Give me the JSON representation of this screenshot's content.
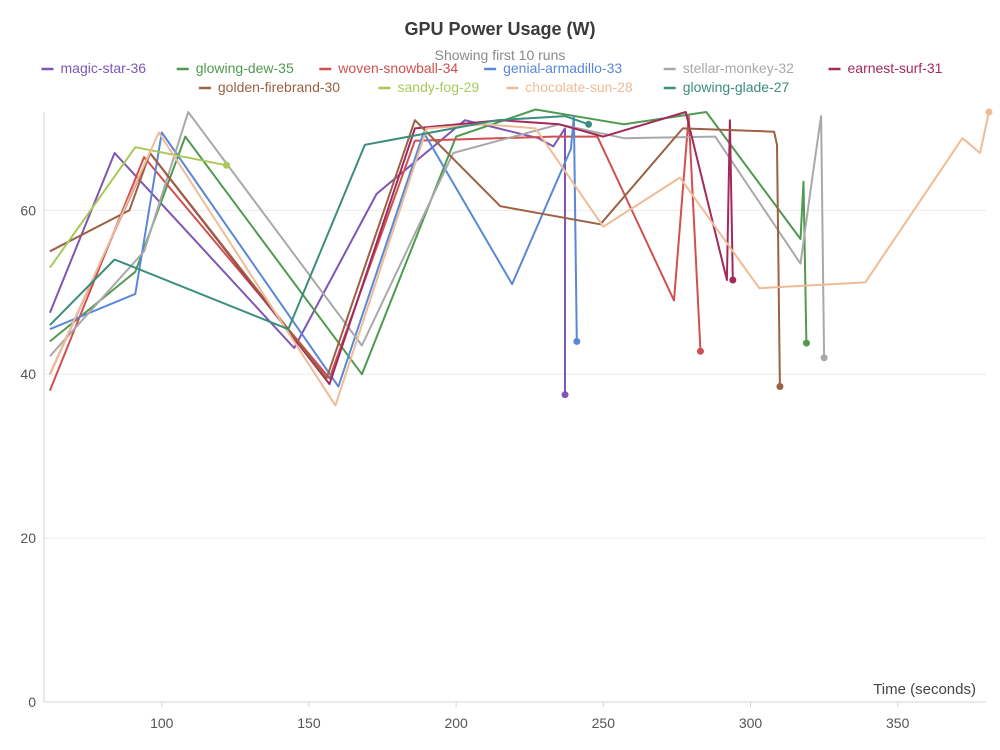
{
  "chart_data": {
    "type": "line",
    "title": "GPU Power Usage (W)",
    "subtitle": "Showing first 10 runs",
    "xlabel": "Time (seconds)",
    "ylabel": "",
    "xlim": [
      60,
      380
    ],
    "ylim": [
      0,
      72
    ],
    "x_ticks": [
      100,
      150,
      200,
      250,
      300,
      350
    ],
    "y_ticks": [
      0,
      20,
      40,
      60
    ],
    "grid": true,
    "legend_position": "top",
    "series": [
      {
        "name": "magic-star-36",
        "color": "#7e56b5",
        "points": [
          [
            62,
            47.5
          ],
          [
            84,
            67
          ],
          [
            145,
            43.2
          ],
          [
            173,
            62
          ],
          [
            203,
            71
          ],
          [
            228,
            68.8
          ],
          [
            233,
            67.8
          ],
          [
            237,
            70
          ],
          [
            237,
            37.5
          ]
        ]
      },
      {
        "name": "glowing-dew-35",
        "color": "#4f9a4f",
        "points": [
          [
            62,
            44
          ],
          [
            91,
            52.5
          ],
          [
            108,
            69
          ],
          [
            168,
            40
          ],
          [
            200,
            69
          ],
          [
            227,
            72.3
          ],
          [
            257,
            70.5
          ],
          [
            285,
            72
          ],
          [
            317,
            56.5
          ],
          [
            318,
            63.5
          ],
          [
            319,
            43.8
          ]
        ]
      },
      {
        "name": "woven-snowball-34",
        "color": "#d0504f",
        "points": [
          [
            62,
            38
          ],
          [
            94,
            66.5
          ],
          [
            157,
            39.5
          ],
          [
            186,
            68.5
          ],
          [
            233,
            69
          ],
          [
            248,
            69
          ],
          [
            274,
            49
          ],
          [
            279,
            71.5
          ],
          [
            283,
            42.8
          ]
        ]
      },
      {
        "name": "genial-armadillo-33",
        "color": "#5a87d6",
        "points": [
          [
            62,
            45.5
          ],
          [
            91,
            49.8
          ],
          [
            100,
            69.5
          ],
          [
            160,
            38.5
          ],
          [
            189,
            69.5
          ],
          [
            219,
            51
          ],
          [
            239,
            67.5
          ],
          [
            240,
            71.5
          ],
          [
            241,
            44
          ]
        ]
      },
      {
        "name": "stellar-monkey-32",
        "color": "#a9a9a9",
        "points": [
          [
            62,
            42.2
          ],
          [
            94,
            55
          ],
          [
            109,
            72
          ],
          [
            168,
            43.5
          ],
          [
            199,
            67
          ],
          [
            235,
            70.5
          ],
          [
            257,
            68.8
          ],
          [
            288,
            69
          ],
          [
            317,
            53.5
          ],
          [
            321,
            64
          ],
          [
            324,
            71.5
          ],
          [
            325,
            42
          ]
        ]
      },
      {
        "name": "earnest-surf-31",
        "color": "#a3295c",
        "points": [
          [
            62,
            40
          ],
          [
            96,
            67
          ],
          [
            157,
            38.8
          ],
          [
            186,
            70
          ],
          [
            215,
            71
          ],
          [
            235,
            70.5
          ],
          [
            250,
            69
          ],
          [
            278,
            72
          ],
          [
            292,
            51.5
          ],
          [
            293,
            71
          ],
          [
            294,
            51.5
          ]
        ]
      },
      {
        "name": "golden-firebrand-30",
        "color": "#9c6042",
        "points": [
          [
            62,
            55
          ],
          [
            89,
            60
          ],
          [
            96,
            67
          ],
          [
            156,
            39.5
          ],
          [
            186,
            71
          ],
          [
            215,
            60.5
          ],
          [
            249,
            58.3
          ],
          [
            277,
            70
          ],
          [
            308,
            69.6
          ],
          [
            309,
            68
          ],
          [
            310,
            38.5
          ]
        ]
      },
      {
        "name": "sandy-fog-29",
        "color": "#a8c957",
        "points": [
          [
            62,
            53
          ],
          [
            91,
            67.7
          ],
          [
            122,
            65.5
          ]
        ]
      },
      {
        "name": "chocolate-sun-28",
        "color": "#eebc96",
        "points": [
          [
            62,
            40
          ],
          [
            99,
            69.5
          ],
          [
            159,
            36.2
          ],
          [
            190,
            70
          ],
          [
            210,
            70.5
          ],
          [
            227,
            70
          ],
          [
            250,
            58
          ],
          [
            276,
            64
          ],
          [
            303,
            50.5
          ],
          [
            339,
            51.2
          ],
          [
            372,
            68.8
          ],
          [
            378,
            67
          ],
          [
            381,
            72
          ]
        ]
      },
      {
        "name": "glowing-glade-27",
        "color": "#3b8e7d",
        "points": [
          [
            62,
            46
          ],
          [
            84,
            54
          ],
          [
            143,
            45.5
          ],
          [
            169,
            68
          ],
          [
            214,
            71
          ],
          [
            237,
            71.5
          ],
          [
            245,
            70.5
          ]
        ]
      }
    ]
  }
}
